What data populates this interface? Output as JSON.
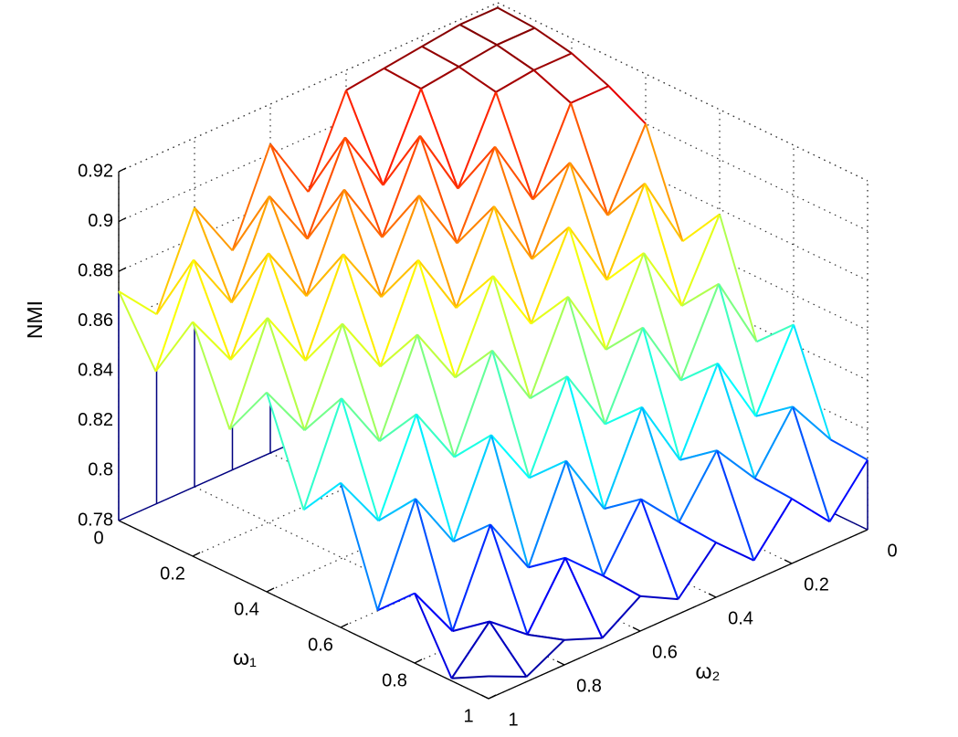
{
  "chart_data": {
    "type": "mesh",
    "z_label": "NMI",
    "x_label": "ω₁",
    "y_label": "ω₂",
    "colormap": "jet",
    "grid": true,
    "x": [
      0,
      0.1,
      0.2,
      0.3,
      0.4,
      0.5,
      0.6,
      0.7,
      0.8,
      0.9,
      1
    ],
    "y": [
      0,
      0.1,
      0.2,
      0.3,
      0.4,
      0.5,
      0.6,
      0.7,
      0.8,
      0.9,
      1
    ],
    "z": [
      [
        0.918,
        0.918,
        0.916,
        0.914,
        0.912,
        0.878,
        0.904,
        0.868,
        0.892,
        0.856,
        0.872
      ],
      [
        0.917,
        0.917,
        0.915,
        0.913,
        0.881,
        0.907,
        0.873,
        0.897,
        0.861,
        0.885,
        0.847
      ],
      [
        0.914,
        0.914,
        0.912,
        0.88,
        0.908,
        0.874,
        0.9,
        0.864,
        0.888,
        0.852,
        0.874
      ],
      [
        0.908,
        0.908,
        0.876,
        0.904,
        0.872,
        0.898,
        0.864,
        0.888,
        0.852,
        0.876,
        0.838
      ],
      [
        0.9,
        0.87,
        0.898,
        0.866,
        0.894,
        0.86,
        0.886,
        0.85,
        0.874,
        0.838,
        0.86
      ],
      [
        0.86,
        0.89,
        0.858,
        0.886,
        0.854,
        0.88,
        0.846,
        0.87,
        0.834,
        0.858,
        0.82
      ],
      [
        0.878,
        0.848,
        0.876,
        0.844,
        0.872,
        0.838,
        0.864,
        0.828,
        0.852,
        0.816,
        0.838
      ],
      [
        0.834,
        0.864,
        0.832,
        0.86,
        0.828,
        0.854,
        0.82,
        0.844,
        0.808,
        0.832,
        0.794
      ],
      [
        0.848,
        0.818,
        0.846,
        0.814,
        0.842,
        0.808,
        0.834,
        0.798,
        0.822,
        0.786,
        0.808
      ],
      [
        0.809,
        0.829,
        0.807,
        0.825,
        0.803,
        0.819,
        0.795,
        0.809,
        0.785,
        0.797,
        0.781
      ],
      [
        0.808,
        0.79,
        0.806,
        0.788,
        0.802,
        0.786,
        0.794,
        0.784,
        0.79,
        0.782,
        0.789
      ]
    ],
    "xlim": [
      0,
      1
    ],
    "ylim": [
      0,
      1
    ],
    "zlim": [
      0.78,
      0.92
    ],
    "xticks": [
      0,
      0.2,
      0.4,
      0.6,
      0.8,
      1
    ],
    "yticks": [
      0,
      0.2,
      0.4,
      0.6,
      0.8,
      1
    ],
    "zticks": [
      0.78,
      0.8,
      0.82,
      0.84,
      0.86,
      0.88,
      0.9,
      0.92
    ]
  }
}
